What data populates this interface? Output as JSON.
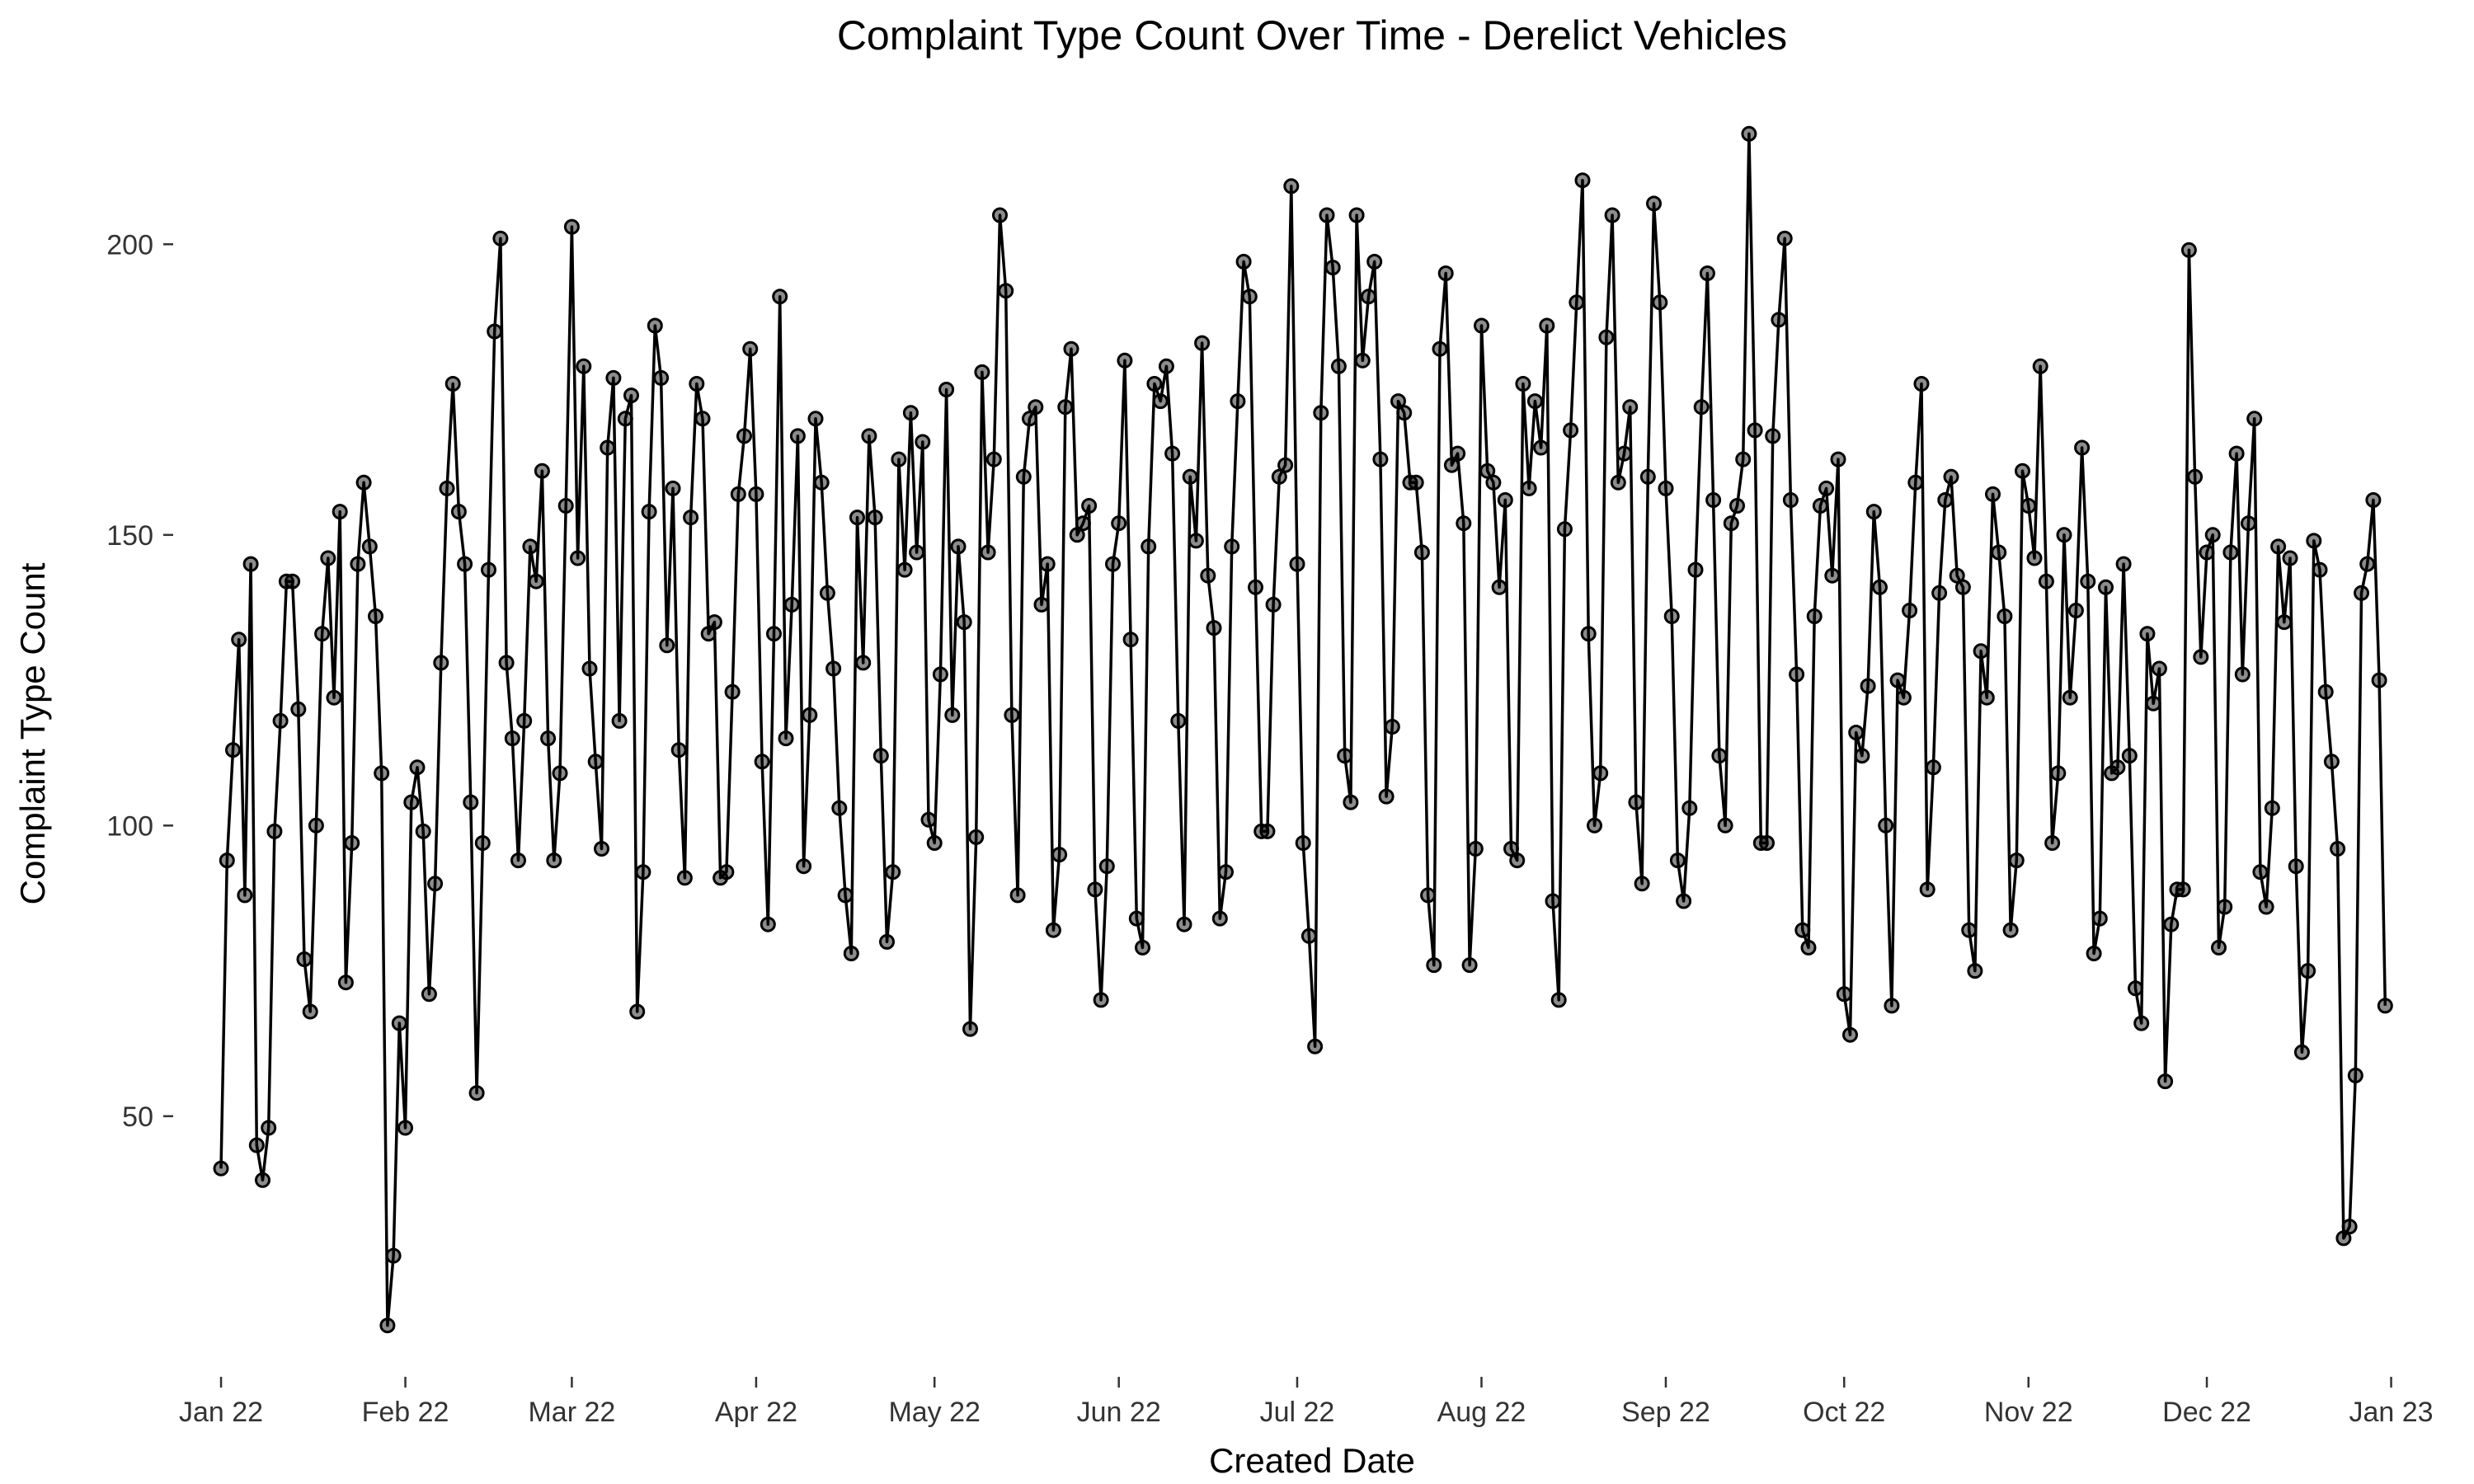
{
  "chart_data": {
    "type": "line",
    "title": "Complaint Type Count Over Time - Derelict Vehicles",
    "xlabel": "Created Date",
    "ylabel": "Complaint Type Count",
    "x_ticks": [
      {
        "label": "Jan 22",
        "date": "2022-01-01"
      },
      {
        "label": "Feb 22",
        "date": "2022-02-01"
      },
      {
        "label": "Mar 22",
        "date": "2022-03-01"
      },
      {
        "label": "Apr 22",
        "date": "2022-04-01"
      },
      {
        "label": "May 22",
        "date": "2022-05-01"
      },
      {
        "label": "Jun 22",
        "date": "2022-06-01"
      },
      {
        "label": "Jul 22",
        "date": "2022-07-01"
      },
      {
        "label": "Aug 22",
        "date": "2022-08-01"
      },
      {
        "label": "Sep 22",
        "date": "2022-09-01"
      },
      {
        "label": "Oct 22",
        "date": "2022-10-01"
      },
      {
        "label": "Nov 22",
        "date": "2022-11-01"
      },
      {
        "label": "Dec 22",
        "date": "2022-12-01"
      },
      {
        "label": "Jan 23",
        "date": "2023-01-01"
      }
    ],
    "y_ticks": [
      50,
      100,
      150,
      200
    ],
    "xlim": [
      "2021-12-27",
      "2023-01-08"
    ],
    "ylim": [
      8,
      225
    ],
    "grid": false,
    "line_color": "#000000",
    "point_color": "#555555",
    "x_start": "2022-01-01",
    "x_interval": "1 day",
    "values": [
      41,
      94,
      113,
      132,
      88,
      145,
      45,
      39,
      48,
      99,
      118,
      142,
      142,
      120,
      77,
      68,
      100,
      133,
      146,
      122,
      154,
      73,
      97,
      145,
      159,
      148,
      136,
      109,
      14,
      26,
      66,
      48,
      104,
      110,
      99,
      71,
      90,
      128,
      158,
      176,
      154,
      145,
      104,
      54,
      97,
      144,
      185,
      201,
      128,
      115,
      94,
      118,
      148,
      142,
      161,
      115,
      94,
      109,
      155,
      203,
      146,
      179,
      127,
      111,
      96,
      165,
      177,
      118,
      170,
      174,
      68,
      92,
      154,
      186,
      177,
      131,
      158,
      113,
      91,
      153,
      176,
      170,
      133,
      135,
      91,
      92,
      123,
      157,
      167,
      182,
      157,
      111,
      83,
      133,
      191,
      115,
      138,
      167,
      93,
      119,
      170,
      159,
      140,
      127,
      103,
      88,
      78,
      153,
      128,
      167,
      153,
      112,
      80,
      92,
      163,
      144,
      171,
      147,
      166,
      101,
      97,
      126,
      175,
      119,
      148,
      135,
      65,
      98,
      178,
      147,
      163,
      205,
      192,
      119,
      88,
      160,
      170,
      172,
      138,
      145,
      82,
      95,
      172,
      182,
      150,
      152,
      155,
      89,
      70,
      93,
      145,
      152,
      180,
      132,
      84,
      79,
      148,
      176,
      173,
      179,
      164,
      118,
      83,
      160,
      149,
      183,
      143,
      134,
      84,
      92,
      148,
      173,
      197,
      191,
      141,
      99,
      99,
      138,
      160,
      162,
      210,
      145,
      97,
      81,
      62,
      171,
      205,
      196,
      179,
      112,
      104,
      205,
      180,
      191,
      197,
      163,
      105,
      117,
      173,
      171,
      159,
      159,
      147,
      88,
      76,
      182,
      195,
      162,
      164,
      152,
      76,
      96,
      186,
      161,
      159,
      141,
      156,
      96,
      94,
      176,
      158,
      173,
      165,
      186,
      87,
      70,
      151,
      168,
      190,
      211,
      133,
      100,
      109,
      184,
      205,
      159,
      164,
      172,
      104,
      90,
      160,
      207,
      190,
      158,
      136,
      94,
      87,
      103,
      144,
      172,
      195,
      156,
      112,
      100,
      152,
      155,
      163,
      219,
      168,
      97,
      97,
      167,
      187,
      201,
      156,
      126,
      82,
      79,
      136,
      155,
      158,
      143,
      163,
      71,
      64,
      116,
      112,
      124,
      154,
      141,
      100,
      69,
      125,
      122,
      137,
      159,
      176,
      89,
      110,
      140,
      156,
      160,
      143,
      141,
      82,
      75,
      130,
      122,
      157,
      147,
      136,
      82,
      94,
      161,
      155,
      146,
      179,
      142,
      97,
      109,
      150,
      122,
      137,
      165,
      142,
      78,
      84,
      141,
      109,
      110,
      145,
      112,
      72,
      66,
      133,
      121,
      127,
      56,
      83,
      89,
      89,
      199,
      160,
      129,
      147,
      150,
      79,
      86,
      147,
      164,
      126,
      152,
      170,
      92,
      86,
      103,
      148,
      135,
      146,
      93,
      61,
      75,
      149,
      144,
      123,
      111,
      96,
      29,
      31,
      57,
      140,
      145,
      156,
      125,
      69
    ]
  }
}
